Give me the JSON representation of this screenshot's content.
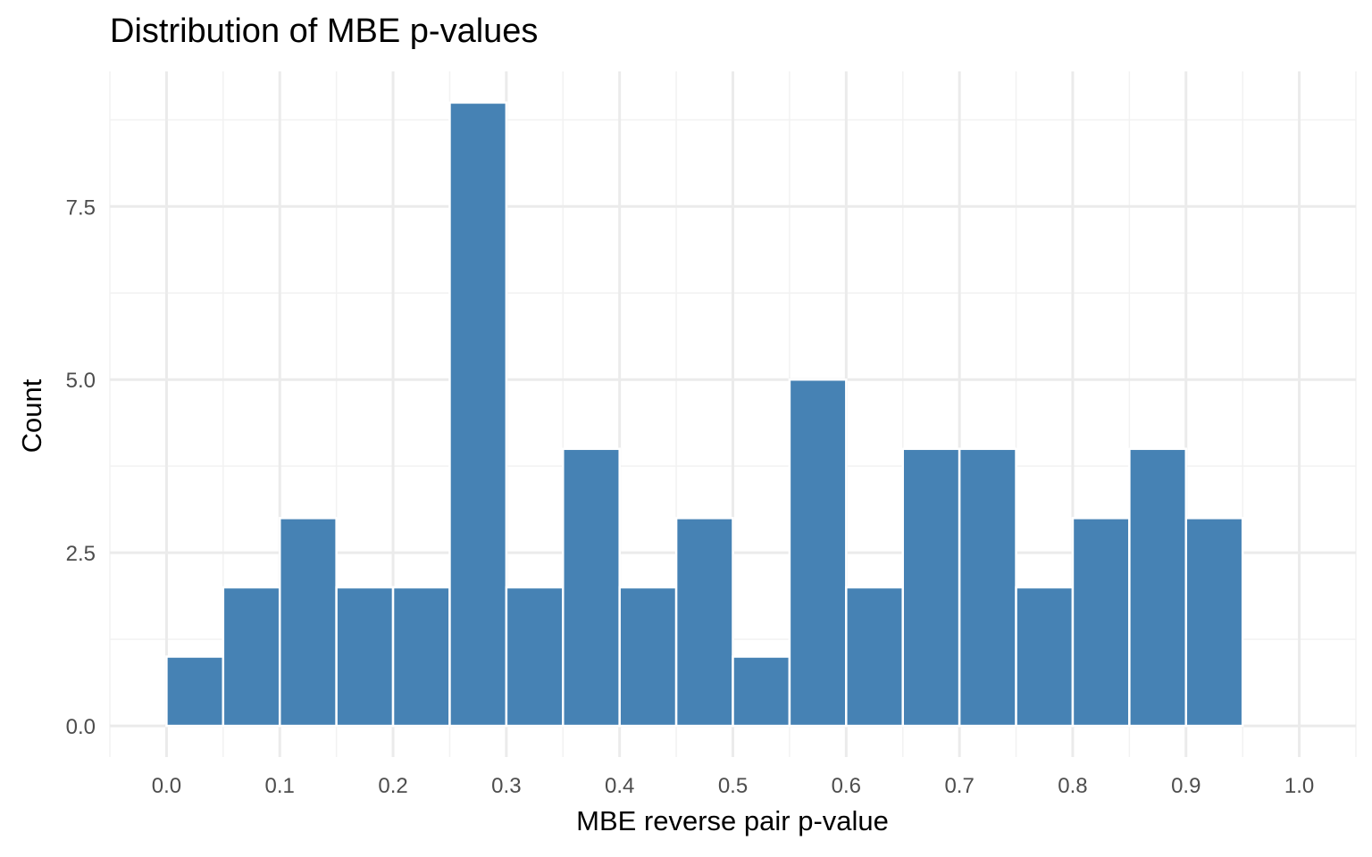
{
  "chart_data": {
    "type": "bar",
    "title": "Distribution of MBE p-values",
    "xlabel": "MBE reverse pair p-value",
    "ylabel": "Count",
    "bin_width": 0.05,
    "bins": [
      {
        "start": 0.0,
        "end": 0.05,
        "count": 1
      },
      {
        "start": 0.05,
        "end": 0.1,
        "count": 2
      },
      {
        "start": 0.1,
        "end": 0.15,
        "count": 3
      },
      {
        "start": 0.15,
        "end": 0.2,
        "count": 2
      },
      {
        "start": 0.2,
        "end": 0.25,
        "count": 2
      },
      {
        "start": 0.25,
        "end": 0.3,
        "count": 9
      },
      {
        "start": 0.3,
        "end": 0.35,
        "count": 2
      },
      {
        "start": 0.35,
        "end": 0.4,
        "count": 4
      },
      {
        "start": 0.4,
        "end": 0.45,
        "count": 2
      },
      {
        "start": 0.45,
        "end": 0.5,
        "count": 3
      },
      {
        "start": 0.5,
        "end": 0.55,
        "count": 1
      },
      {
        "start": 0.55,
        "end": 0.6,
        "count": 5
      },
      {
        "start": 0.6,
        "end": 0.65,
        "count": 2
      },
      {
        "start": 0.65,
        "end": 0.7,
        "count": 4
      },
      {
        "start": 0.7,
        "end": 0.75,
        "count": 4
      },
      {
        "start": 0.75,
        "end": 0.8,
        "count": 2
      },
      {
        "start": 0.8,
        "end": 0.85,
        "count": 3
      },
      {
        "start": 0.85,
        "end": 0.9,
        "count": 4
      },
      {
        "start": 0.9,
        "end": 0.95,
        "count": 3
      },
      {
        "start": 0.95,
        "end": 1.0,
        "count": 0
      }
    ],
    "x_ticks": [
      {
        "value": 0.0,
        "label": "0.0"
      },
      {
        "value": 0.1,
        "label": "0.1"
      },
      {
        "value": 0.2,
        "label": "0.2"
      },
      {
        "value": 0.3,
        "label": "0.3"
      },
      {
        "value": 0.4,
        "label": "0.4"
      },
      {
        "value": 0.5,
        "label": "0.5"
      },
      {
        "value": 0.6,
        "label": "0.6"
      },
      {
        "value": 0.7,
        "label": "0.7"
      },
      {
        "value": 0.8,
        "label": "0.8"
      },
      {
        "value": 0.9,
        "label": "0.9"
      },
      {
        "value": 1.0,
        "label": "1.0"
      }
    ],
    "y_ticks": [
      {
        "value": 0.0,
        "label": "0.0"
      },
      {
        "value": 2.5,
        "label": "2.5"
      },
      {
        "value": 5.0,
        "label": "5.0"
      },
      {
        "value": 7.5,
        "label": "7.5"
      }
    ],
    "xlim": [
      -0.05,
      1.05
    ],
    "ylim": [
      -0.45,
      9.45
    ],
    "grid": true,
    "legend": "none",
    "colors": {
      "bar_fill": "#4682B4",
      "bar_border": "#FFFFFF",
      "grid_major": "#EBEBEB",
      "grid_minor": "#F2F2F2",
      "tick_text": "#4D4D4D",
      "title_text": "#000000"
    }
  }
}
